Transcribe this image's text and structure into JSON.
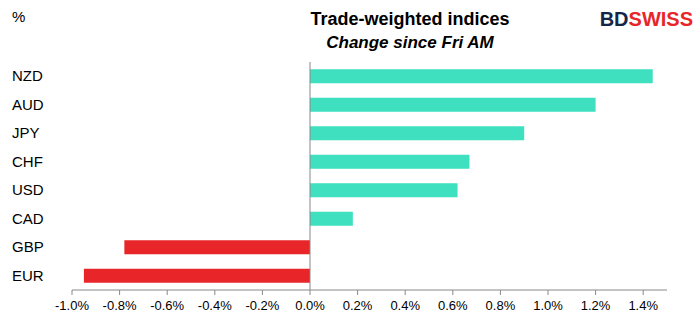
{
  "chart_data": {
    "type": "bar",
    "orientation": "horizontal",
    "title": "Trade-weighted indices",
    "subtitle": "Change since Fri AM",
    "axis_label": "%",
    "annotations": [
      "BD",
      "SWISS"
    ],
    "categories": [
      "NZD",
      "AUD",
      "JPY",
      "CHF",
      "USD",
      "CAD",
      "GBP",
      "EUR"
    ],
    "values": [
      1.44,
      1.2,
      0.9,
      0.67,
      0.62,
      0.18,
      -0.78,
      -0.95
    ],
    "colors": [
      "#3fe0c0",
      "#3fe0c0",
      "#3fe0c0",
      "#3fe0c0",
      "#3fe0c0",
      "#3fe0c0",
      "#e8262a",
      "#e8262a"
    ],
    "xlim": [
      -1.0,
      1.5
    ],
    "xticks": [
      {
        "value": -1.0,
        "label": "-1.0%"
      },
      {
        "value": -0.8,
        "label": "-0.8%"
      },
      {
        "value": -0.6,
        "label": "-0.6%"
      },
      {
        "value": -0.4,
        "label": "-0.4%"
      },
      {
        "value": -0.2,
        "label": "-0.2%"
      },
      {
        "value": 0.0,
        "label": "0.0%"
      },
      {
        "value": 0.2,
        "label": "0.2%"
      },
      {
        "value": 0.4,
        "label": "0.4%"
      },
      {
        "value": 0.6,
        "label": "0.6%"
      },
      {
        "value": 0.8,
        "label": "0.8%"
      },
      {
        "value": 1.0,
        "label": "1.0%"
      },
      {
        "value": 1.2,
        "label": "1.2%"
      },
      {
        "value": 1.4,
        "label": "1.4%"
      }
    ],
    "grid": false
  }
}
